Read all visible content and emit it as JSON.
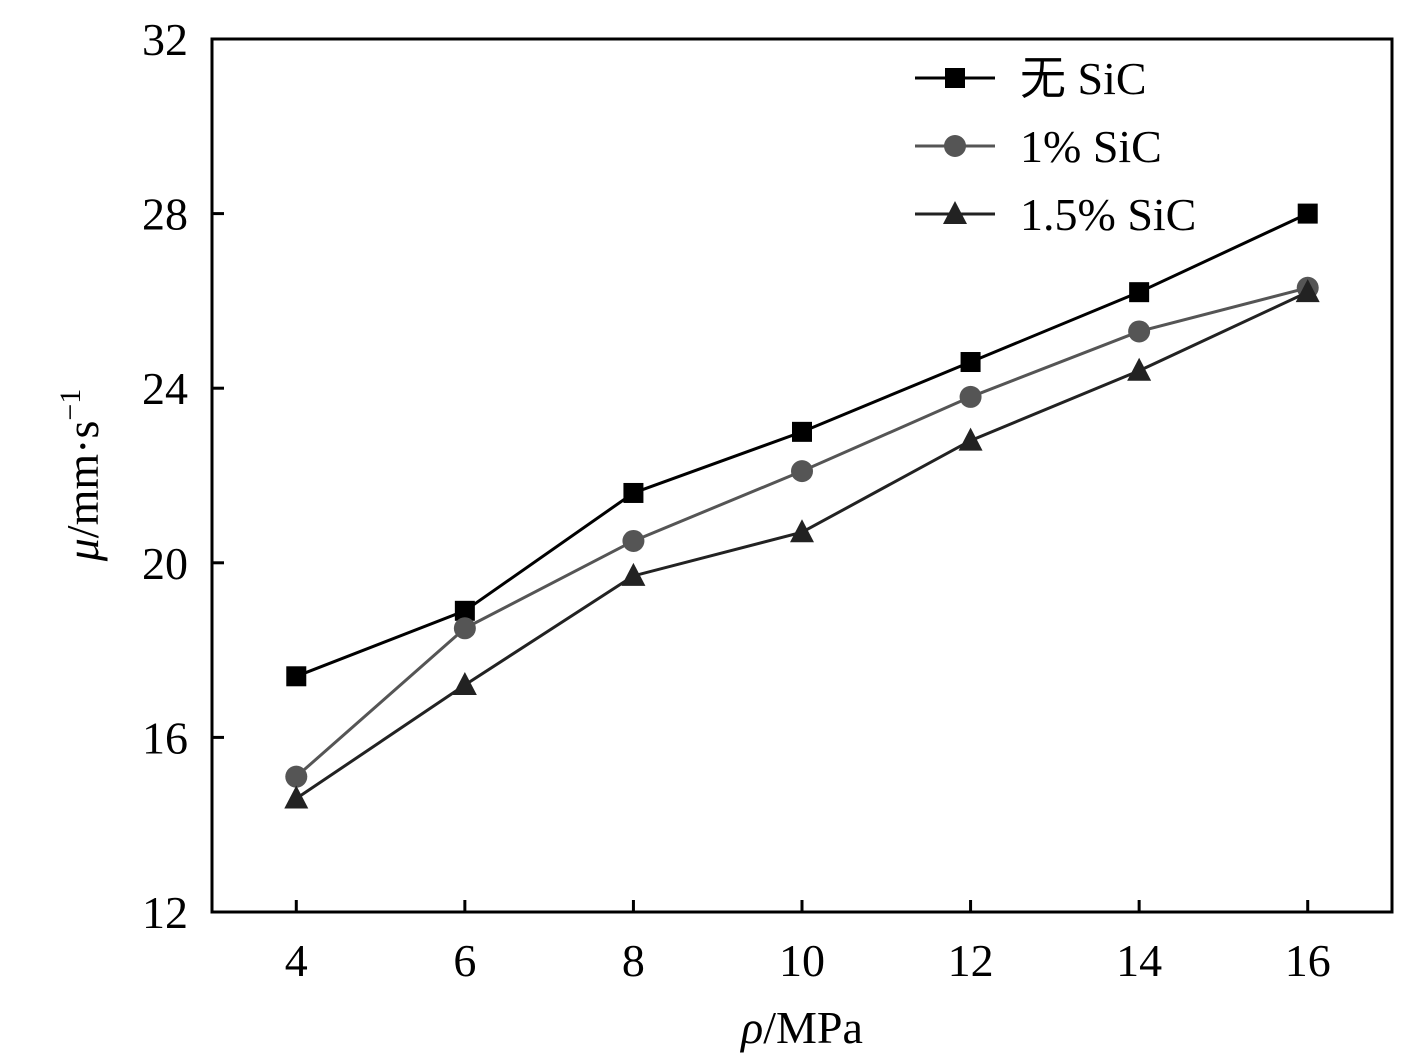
{
  "chart_data": {
    "type": "line",
    "title": "",
    "xlabel_symbol": "ρ",
    "xlabel_unit": "/MPa",
    "ylabel_symbol": "μ",
    "ylabel_unit": "/mm·s",
    "ylabel_exp": "−1",
    "xlim": [
      3,
      17
    ],
    "ylim": [
      12,
      32
    ],
    "xticks": [
      4,
      6,
      8,
      10,
      12,
      14,
      16
    ],
    "yticks": [
      12,
      16,
      20,
      24,
      28,
      32
    ],
    "x": [
      4,
      6,
      8,
      10,
      12,
      14,
      16
    ],
    "series": [
      {
        "name": "无 SiC",
        "marker": "square",
        "color": "#000000",
        "values": [
          17.4,
          18.9,
          21.6,
          23.0,
          24.6,
          26.2,
          28.0
        ]
      },
      {
        "name": "1% SiC",
        "marker": "circle",
        "color": "#555555",
        "values": [
          15.1,
          18.5,
          20.5,
          22.1,
          23.8,
          25.3,
          26.3
        ]
      },
      {
        "name": "1.5% SiC",
        "marker": "triangle",
        "color": "#222222",
        "values": [
          14.6,
          17.2,
          19.7,
          20.7,
          22.8,
          24.4,
          26.2
        ]
      }
    ],
    "legend_position": "top-right"
  }
}
